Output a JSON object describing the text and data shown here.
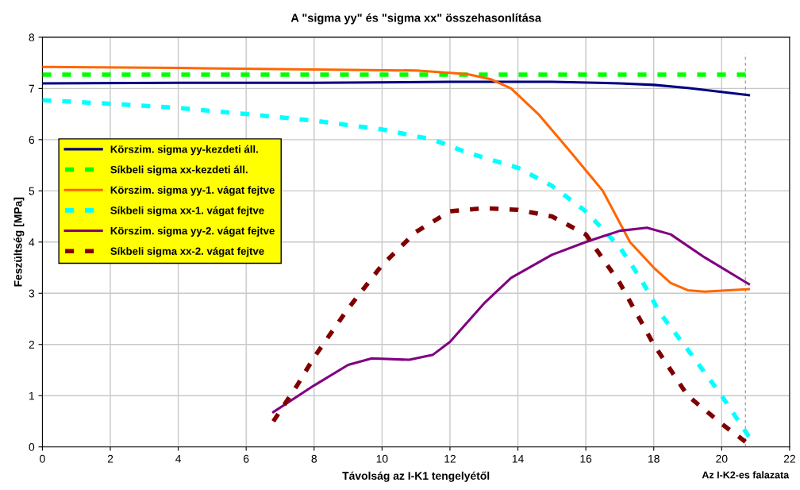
{
  "chart_data": {
    "type": "line",
    "title": "A \"sigma yy\" és \"sigma xx\" összehasonlítása",
    "xlabel": "Távolság az I-K1 tengelyétől",
    "ylabel": "Feszültség [MPa]",
    "xlim": [
      0,
      22
    ],
    "xticks": [
      0,
      2,
      4,
      6,
      8,
      10,
      12,
      14,
      16,
      18,
      20,
      22
    ],
    "ylim": [
      0,
      8
    ],
    "yticks": [
      0,
      1,
      2,
      3,
      4,
      5,
      6,
      7,
      8
    ],
    "grid": true,
    "legend": "left",
    "marker": "none",
    "ref_lines": [
      {
        "axis": "x",
        "value": 20.7,
        "label": "Az I-K2-es falazata",
        "color": "#999999",
        "line_style": "dashed"
      }
    ],
    "series": [
      {
        "name": "Körszim. sigma yy-kezdeti áll.",
        "color": "#000080",
        "line_style": "solid",
        "x": [
          0,
          4,
          8,
          12,
          15,
          17,
          18,
          19,
          19.5,
          20.8
        ],
        "values": [
          7.1,
          7.11,
          7.11,
          7.13,
          7.13,
          7.1,
          7.07,
          7.01,
          6.97,
          6.87
        ]
      },
      {
        "name": "Síkbeli sigma xx-kezdeti áll.",
        "color": "#00ff00",
        "line_style": "dashed",
        "x": [
          0,
          20.8
        ],
        "values": [
          7.27,
          7.27
        ]
      },
      {
        "name": "Körszim. sigma yy-1. vágat fejtve",
        "color": "#ff6600",
        "line_style": "solid",
        "x": [
          0,
          4,
          8,
          11,
          12.5,
          13.2,
          13.8,
          14.6,
          15.5,
          16.5,
          17.3,
          18,
          18.5,
          19,
          19.5,
          20,
          20.8
        ],
        "values": [
          7.42,
          7.4,
          7.37,
          7.35,
          7.28,
          7.18,
          7.0,
          6.5,
          5.8,
          5.0,
          4.0,
          3.5,
          3.2,
          3.06,
          3.03,
          3.05,
          3.08
        ]
      },
      {
        "name": "Síkbeli sigma xx-1. vágat fejtve",
        "color": "#00ffff",
        "line_style": "dashed",
        "x": [
          0,
          2,
          4,
          6,
          8,
          10,
          11.5,
          12.5,
          14,
          15,
          16,
          17,
          17.6,
          18.2,
          19,
          20,
          20.8
        ],
        "values": [
          6.77,
          6.7,
          6.62,
          6.5,
          6.37,
          6.2,
          6.0,
          5.75,
          5.45,
          5.1,
          4.6,
          3.9,
          3.3,
          2.6,
          1.9,
          1.0,
          0.2
        ]
      },
      {
        "name": "Körszim. sigma yy-2. vágat fejtve",
        "color": "#800080",
        "line_style": "solid",
        "x": [
          6.8,
          8,
          9,
          9.7,
          10.8,
          11.5,
          12,
          13,
          13.8,
          15,
          16,
          17,
          17.8,
          18.5,
          19.5,
          20.8
        ],
        "values": [
          0.68,
          1.2,
          1.6,
          1.73,
          1.7,
          1.8,
          2.05,
          2.8,
          3.3,
          3.75,
          4.0,
          4.22,
          4.28,
          4.15,
          3.7,
          3.18
        ]
      },
      {
        "name": "Síkbeli sigma xx-2. vágat fejtve",
        "color": "#800000",
        "line_style": "dashed",
        "x": [
          6.8,
          7.5,
          8,
          9,
          10,
          11,
          12,
          13,
          14,
          15,
          16,
          17,
          18,
          19,
          20,
          20.7
        ],
        "values": [
          0.5,
          1.2,
          1.75,
          2.7,
          3.55,
          4.2,
          4.6,
          4.66,
          4.63,
          4.5,
          4.15,
          3.2,
          2.0,
          1.0,
          0.45,
          0.1
        ]
      }
    ]
  }
}
